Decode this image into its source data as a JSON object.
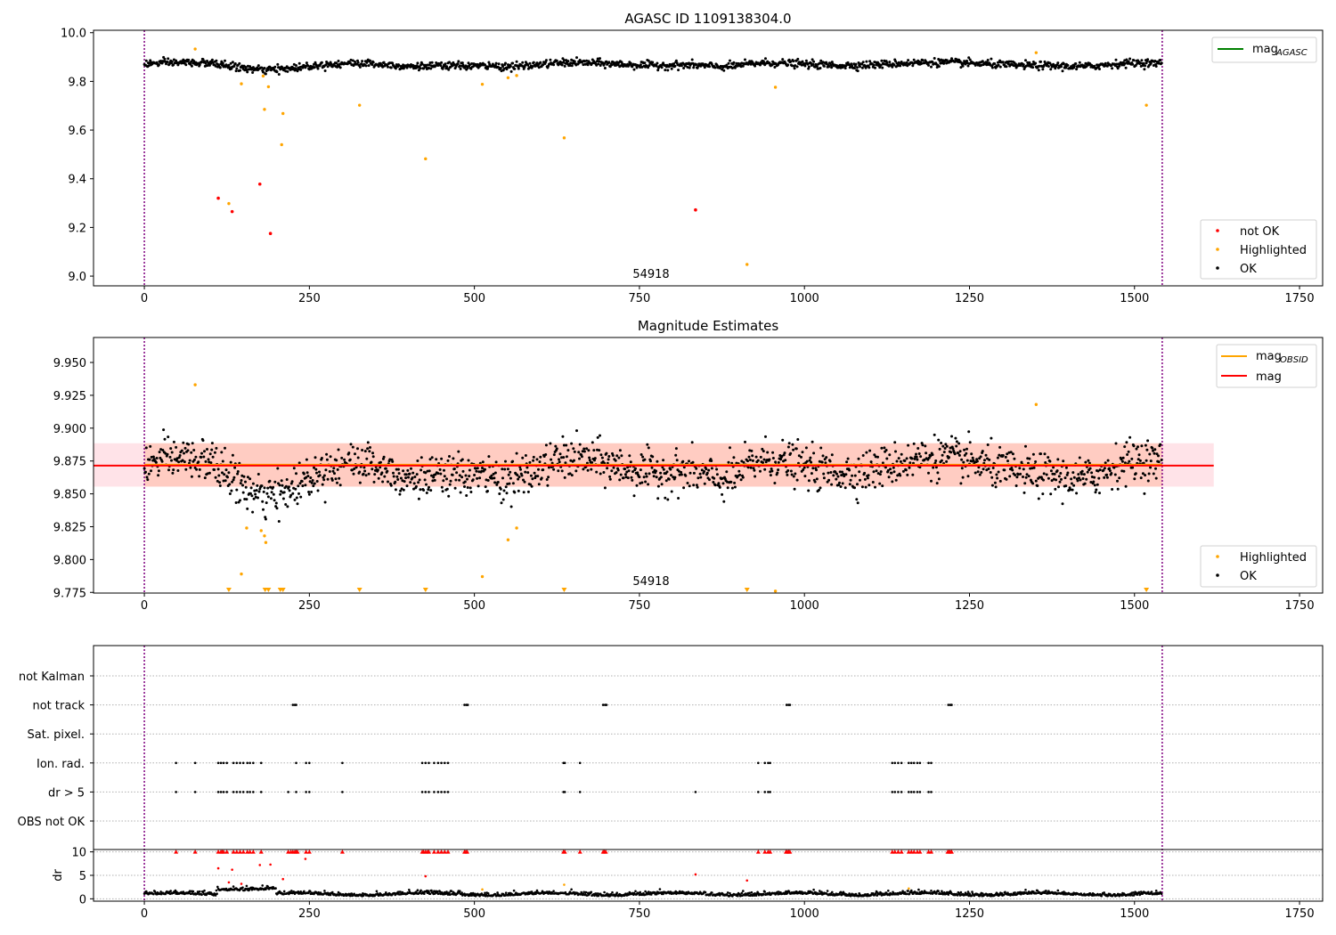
{
  "figure": {
    "panel1_title": "AGASC ID 1109138304.0",
    "panel2_title": "Magnitude Estimates",
    "obs_label": "54918"
  },
  "legends": {
    "mag_agasc": "mag",
    "mag_agasc_sub": "AGASC",
    "mag_obsid": "mag",
    "mag_obsid_sub": "OBSID",
    "mag": "mag",
    "not_ok": "not OK",
    "highlighted": "Highlighted",
    "ok": "OK"
  },
  "colors": {
    "ok": "#000000",
    "highlighted": "#ffa500",
    "not_ok": "#ff0000",
    "mag_agasc_line": "#008000",
    "mag_obsid_line": "#ffa500",
    "mag_line": "#ff0000",
    "obs_boundary": "#800080",
    "band_outer": "#ffc0cb",
    "band_inner": "#ffa07a"
  },
  "chart_data": [
    {
      "type": "scatter",
      "title": "AGASC ID 1109138304.0",
      "xlim": [
        -77,
        1785
      ],
      "ylim": [
        8.96,
        10.01
      ],
      "xticks": [
        0,
        250,
        500,
        750,
        1000,
        1250,
        1500,
        1750
      ],
      "yticks": [
        9.0,
        9.2,
        9.4,
        9.6,
        9.8,
        10.0
      ],
      "ytick_labels": [
        "9.0",
        "9.2",
        "9.4",
        "9.6",
        "9.8",
        "10.0"
      ],
      "obs_boundaries": [
        0,
        1542
      ],
      "ok_series": {
        "n": 1542,
        "baseline": 9.872,
        "noise": 0.013,
        "wiggles": [
          {
            "x_center": 180,
            "width": 60,
            "depth": -0.02
          },
          {
            "x_center": 400,
            "width": 60,
            "depth": -0.012
          },
          {
            "x_center": 570,
            "width": 50,
            "depth": -0.01
          },
          {
            "x_center": 880,
            "width": 40,
            "depth": -0.015
          },
          {
            "x_center": 1430,
            "width": 50,
            "depth": -0.012
          }
        ]
      },
      "highlighted": [
        {
          "x": 77,
          "y": 9.933
        },
        {
          "x": 147,
          "y": 9.79
        },
        {
          "x": 180,
          "y": 9.822
        },
        {
          "x": 182,
          "y": 9.685
        },
        {
          "x": 188,
          "y": 9.778
        },
        {
          "x": 208,
          "y": 9.54
        },
        {
          "x": 210,
          "y": 9.668
        },
        {
          "x": 326,
          "y": 9.702
        },
        {
          "x": 426,
          "y": 9.482
        },
        {
          "x": 512,
          "y": 9.788
        },
        {
          "x": 551,
          "y": 9.815
        },
        {
          "x": 564,
          "y": 9.824
        },
        {
          "x": 636,
          "y": 9.568
        },
        {
          "x": 913,
          "y": 9.048
        },
        {
          "x": 956,
          "y": 9.776
        },
        {
          "x": 1351,
          "y": 9.918
        },
        {
          "x": 1518,
          "y": 9.702
        },
        {
          "x": 128,
          "y": 9.298
        }
      ],
      "not_ok": [
        {
          "x": 112,
          "y": 9.32
        },
        {
          "x": 133,
          "y": 9.265
        },
        {
          "x": 175,
          "y": 9.378
        },
        {
          "x": 191,
          "y": 9.175
        },
        {
          "x": 835,
          "y": 9.272
        }
      ]
    },
    {
      "type": "scatter",
      "title": "Magnitude Estimates",
      "xlim": [
        -77,
        1785
      ],
      "ylim": [
        9.7745,
        9.969
      ],
      "xticks": [
        0,
        250,
        500,
        750,
        1000,
        1250,
        1500,
        1750
      ],
      "yticks": [
        9.775,
        9.8,
        9.825,
        9.85,
        9.875,
        9.9,
        9.925,
        9.95
      ],
      "ytick_labels": [
        "9.775",
        "9.800",
        "9.825",
        "9.850",
        "9.875",
        "9.900",
        "9.925",
        "9.950"
      ],
      "mag": 9.8715,
      "mag_band": [
        9.8555,
        9.8885
      ],
      "obs_boundaries": [
        0,
        1542
      ],
      "highlighted": [
        {
          "x": 77,
          "y": 9.933
        },
        {
          "x": 147,
          "y": 9.789
        },
        {
          "x": 155,
          "y": 9.824
        },
        {
          "x": 177,
          "y": 9.822
        },
        {
          "x": 182,
          "y": 9.818
        },
        {
          "x": 184,
          "y": 9.813
        },
        {
          "x": 512,
          "y": 9.787
        },
        {
          "x": 551,
          "y": 9.815
        },
        {
          "x": 564,
          "y": 9.824
        },
        {
          "x": 956,
          "y": 9.776
        },
        {
          "x": 1351,
          "y": 9.918
        }
      ],
      "below_range_markers": [
        128,
        183,
        188,
        206,
        210,
        326,
        426,
        636,
        913,
        1518
      ]
    },
    {
      "type": "scatter",
      "categories": [
        "not Kalman",
        "not track",
        "Sat. pixel.",
        "Ion. rad.",
        "dr > 5",
        "OBS not OK"
      ],
      "xlim": [
        -77,
        1785
      ],
      "xticks": [
        0,
        250,
        500,
        750,
        1000,
        1250,
        1500,
        1750
      ],
      "obs_boundaries": [
        0,
        1542
      ],
      "flags": {
        "not track": [
          225,
          228,
          230,
          485,
          488,
          490,
          695,
          698,
          700,
          973,
          976,
          978,
          1218,
          1221,
          1223
        ],
        "Ion. rad.": [
          48,
          77,
          112,
          116,
          120,
          125,
          135,
          140,
          145,
          150,
          156,
          160,
          165,
          177,
          230,
          245,
          250,
          300,
          421,
          426,
          431,
          439,
          445,
          450,
          455,
          460,
          635,
          637,
          660,
          930,
          940,
          945,
          948,
          1133,
          1137,
          1142,
          1147,
          1158,
          1162,
          1166,
          1171,
          1175,
          1188,
          1192
        ],
        "dr > 5": [
          48,
          77,
          112,
          116,
          120,
          125,
          135,
          140,
          145,
          150,
          156,
          160,
          165,
          177,
          218,
          230,
          245,
          250,
          300,
          421,
          426,
          431,
          439,
          445,
          450,
          455,
          460,
          635,
          637,
          660,
          835,
          930,
          940,
          945,
          948,
          1133,
          1137,
          1142,
          1147,
          1158,
          1162,
          1166,
          1171,
          1175,
          1188,
          1192
        ]
      },
      "dr": {
        "ylabel": "dr",
        "ylim": [
          -0.5,
          10.5
        ],
        "yticks": [
          0,
          5,
          10
        ],
        "baseline_mean": 0.8,
        "capped_at_10": [
          48,
          77,
          112,
          116,
          118,
          120,
          125,
          135,
          140,
          145,
          150,
          156,
          160,
          165,
          177,
          218,
          222,
          225,
          228,
          230,
          232,
          245,
          250,
          300,
          421,
          423,
          426,
          429,
          431,
          439,
          445,
          450,
          455,
          460,
          485,
          487,
          489,
          635,
          637,
          660,
          695,
          697,
          699,
          930,
          940,
          945,
          948,
          972,
          974,
          976,
          978,
          1133,
          1137,
          1142,
          1147,
          1158,
          1162,
          1166,
          1171,
          1175,
          1188,
          1192,
          1217,
          1219,
          1221,
          1223
        ],
        "red_points": [
          {
            "x": 112,
            "y": 6.5
          },
          {
            "x": 133,
            "y": 6.2
          },
          {
            "x": 175,
            "y": 7.2
          },
          {
            "x": 191,
            "y": 7.3
          },
          {
            "x": 244,
            "y": 8.5
          },
          {
            "x": 426,
            "y": 4.8
          },
          {
            "x": 835,
            "y": 5.2
          },
          {
            "x": 913,
            "y": 3.9
          },
          {
            "x": 210,
            "y": 4.2
          },
          {
            "x": 128,
            "y": 3.5
          },
          {
            "x": 147,
            "y": 3.2
          }
        ],
        "orange_points": [
          {
            "x": 636,
            "y": 3.0
          },
          {
            "x": 1158,
            "y": 2.2
          },
          {
            "x": 512,
            "y": 2.0
          }
        ]
      }
    }
  ]
}
